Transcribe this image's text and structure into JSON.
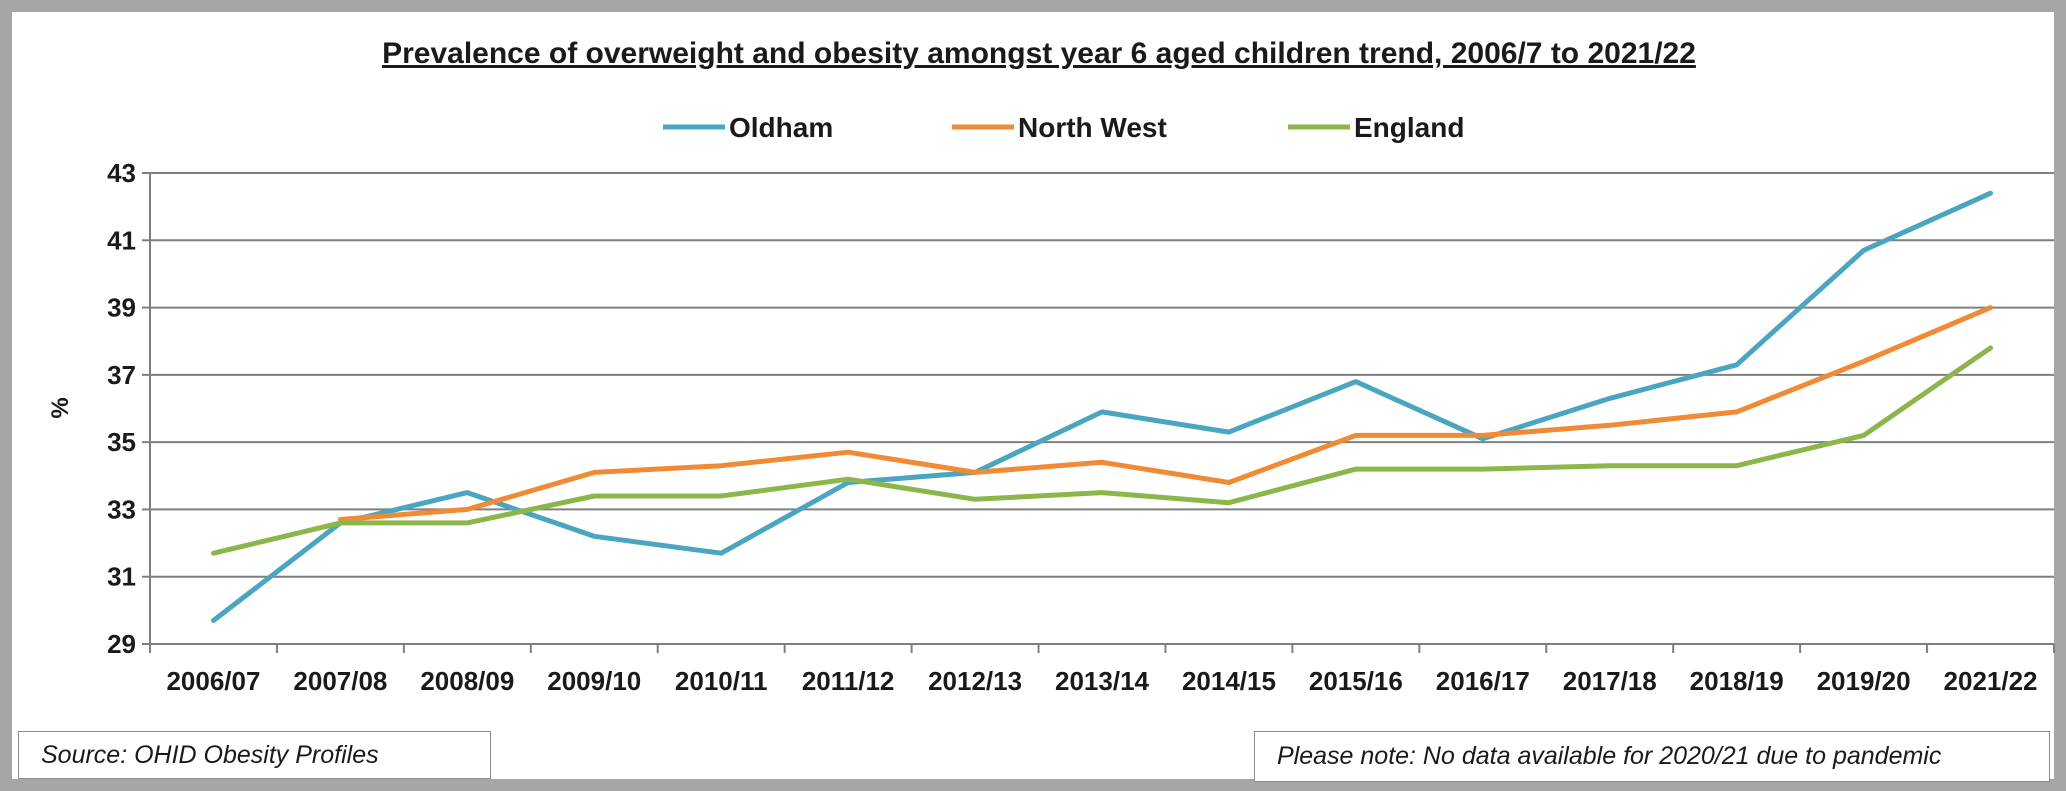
{
  "chart_data": {
    "type": "line",
    "title": "Prevalence of overweight and obesity amongst year 6 aged children trend, 2006/7 to 2021/22",
    "ylabel": "%",
    "xlabel": "",
    "ylim": [
      29,
      43
    ],
    "yticks": [
      29,
      31,
      33,
      35,
      37,
      39,
      41,
      43
    ],
    "grid": true,
    "legend_position": "top",
    "categories": [
      "2006/07",
      "2007/08",
      "2008/09",
      "2009/10",
      "2010/11",
      "2011/12",
      "2012/13",
      "2013/14",
      "2014/15",
      "2015/16",
      "2016/17",
      "2017/18",
      "2018/19",
      "2019/20",
      "2021/22"
    ],
    "series": [
      {
        "name": "Oldham",
        "color": "#4aa5c0",
        "values": [
          29.7,
          32.6,
          33.5,
          32.2,
          31.7,
          33.8,
          34.1,
          35.9,
          35.3,
          36.8,
          35.1,
          36.3,
          37.3,
          40.7,
          42.4
        ]
      },
      {
        "name": "North West",
        "color": "#f08a34",
        "values": [
          null,
          32.7,
          33.0,
          34.1,
          34.3,
          34.7,
          34.1,
          34.4,
          33.8,
          35.2,
          35.2,
          35.5,
          35.9,
          37.4,
          39.0
        ]
      },
      {
        "name": "England",
        "color": "#8db64a",
        "values": [
          31.7,
          32.6,
          32.6,
          33.4,
          33.4,
          33.9,
          33.3,
          33.5,
          33.2,
          34.2,
          34.2,
          34.3,
          34.3,
          35.2,
          37.8
        ]
      }
    ]
  },
  "footer": {
    "source": "Source: OHID Obesity Profiles",
    "note": "Please note: No data available for 2020/21 due to pandemic"
  }
}
